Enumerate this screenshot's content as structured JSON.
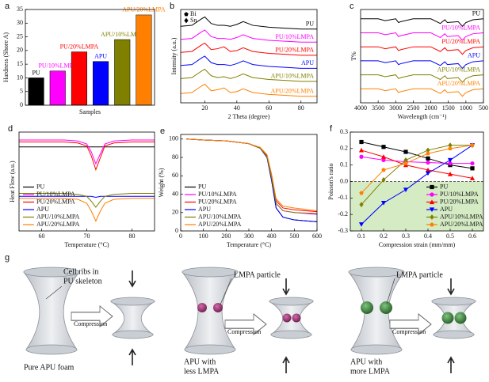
{
  "chart_data": [
    {
      "type": "bar",
      "label": "a",
      "xlabel": "Samples",
      "ylabel": "Hardness (Shore A)",
      "categories": [
        "PU",
        "PU/10%LMPA",
        "PU/20%LMPA",
        "APU",
        "APU/10%LMPA",
        "APU/20%LMPA"
      ],
      "values": [
        10,
        12.5,
        19.5,
        16,
        24,
        33
      ],
      "colors": [
        "#000000",
        "#ff00ff",
        "#ff0000",
        "#0000ff",
        "#808000",
        "#ff8000"
      ],
      "ylim": [
        0,
        35
      ],
      "yticks": [
        0,
        5,
        10,
        15,
        20,
        25,
        30,
        35
      ]
    },
    {
      "type": "line",
      "label": "b",
      "xlabel": "2 Theta (degree)",
      "ylabel": "Intensity (a.u.)",
      "annotations": [
        "Bi",
        "Sn"
      ],
      "x": [
        5,
        12,
        18,
        20,
        24,
        28,
        32,
        36,
        40,
        44,
        50,
        60,
        70,
        80,
        90
      ],
      "xlim": [
        5,
        90
      ],
      "xticks": [
        20,
        40,
        60,
        80
      ],
      "ylim": [
        0,
        100
      ],
      "series": [
        {
          "name": "PU",
          "color": "#000000",
          "values": [
            82,
            83,
            90,
            92,
            85,
            83,
            83,
            82,
            84,
            87,
            83,
            81,
            80,
            79,
            79
          ]
        },
        {
          "name": "PU/10%LMPA",
          "color": "#ff00ff",
          "values": [
            68,
            69,
            76,
            78,
            71,
            69,
            69,
            68,
            70,
            73,
            69,
            67,
            66,
            65,
            65
          ]
        },
        {
          "name": "PU/20%LMPA",
          "color": "#ff0000",
          "values": [
            54,
            55,
            62,
            64,
            57,
            58,
            60,
            55,
            56,
            59,
            55,
            53,
            52,
            51,
            51
          ]
        },
        {
          "name": "APU",
          "color": "#0000ff",
          "values": [
            40,
            41,
            48,
            50,
            43,
            41,
            41,
            40,
            42,
            45,
            41,
            39,
            38,
            37,
            37
          ]
        },
        {
          "name": "APU/10%LMPA",
          "color": "#808000",
          "values": [
            26,
            27,
            34,
            36,
            29,
            27,
            28,
            26,
            28,
            31,
            27,
            25,
            24,
            23,
            23
          ]
        },
        {
          "name": "APU/20%LMPA",
          "color": "#ff8000",
          "values": [
            10,
            11,
            18,
            20,
            13,
            14,
            16,
            11,
            12,
            15,
            11,
            9,
            8,
            7,
            7
          ]
        }
      ]
    },
    {
      "type": "line",
      "label": "c",
      "xlabel": "Wavelength (cm⁻¹)",
      "ylabel": "T%",
      "x": [
        4000,
        3500,
        3300,
        3000,
        2920,
        2850,
        2500,
        2000,
        1730,
        1600,
        1530,
        1220,
        1100,
        1000,
        800,
        500
      ],
      "xlim": [
        4000,
        500
      ],
      "xticks": [
        4000,
        3500,
        3000,
        2500,
        2000,
        1500,
        1000,
        500
      ],
      "ylim": [
        0,
        100
      ],
      "series": [
        {
          "name": "PU",
          "color": "#000000",
          "values": [
            90,
            90,
            88,
            90,
            86,
            87,
            90,
            90,
            85,
            89,
            86,
            87,
            82,
            86,
            89,
            90
          ]
        },
        {
          "name": "PU/10%LMPA",
          "color": "#ff00ff",
          "values": [
            75,
            75,
            73,
            75,
            71,
            72,
            75,
            75,
            70,
            74,
            71,
            72,
            67,
            71,
            74,
            75
          ]
        },
        {
          "name": "PU/20%LMPA",
          "color": "#ff0000",
          "values": [
            60,
            60,
            58,
            60,
            56,
            57,
            60,
            60,
            55,
            59,
            56,
            57,
            52,
            56,
            59,
            60
          ]
        },
        {
          "name": "APU",
          "color": "#0000ff",
          "values": [
            45,
            45,
            43,
            45,
            41,
            42,
            45,
            45,
            40,
            44,
            41,
            42,
            37,
            41,
            44,
            45
          ]
        },
        {
          "name": "APU/10%LMPA",
          "color": "#808000",
          "values": [
            30,
            30,
            28,
            30,
            26,
            27,
            30,
            30,
            25,
            29,
            26,
            27,
            22,
            26,
            29,
            30
          ]
        },
        {
          "name": "APU/20%LMPA",
          "color": "#ff8000",
          "values": [
            15,
            15,
            13,
            15,
            11,
            12,
            15,
            15,
            10,
            14,
            11,
            12,
            7,
            11,
            14,
            15
          ]
        }
      ]
    },
    {
      "type": "line",
      "label": "d",
      "xlabel": "Temperature (°C)",
      "ylabel": "Heat Flow (a.u.)",
      "legend": "lower left",
      "x": [
        55,
        60,
        65,
        68,
        70,
        71,
        72,
        73,
        74,
        76,
        80,
        85
      ],
      "xlim": [
        55,
        85
      ],
      "xticks": [
        60,
        70,
        80
      ],
      "ylim": [
        0,
        100
      ],
      "series": [
        {
          "name": "PU",
          "color": "#000000",
          "values": [
            85,
            85,
            85,
            85,
            85,
            85,
            85,
            85,
            85,
            85,
            85,
            85
          ]
        },
        {
          "name": "PU/10%LMPA",
          "color": "#ff00ff",
          "values": [
            92,
            92,
            92,
            91,
            88,
            80,
            68,
            78,
            88,
            91,
            92,
            92
          ]
        },
        {
          "name": "PU/20%LMPA",
          "color": "#ff0000",
          "values": [
            90,
            90,
            90,
            89,
            86,
            76,
            62,
            74,
            86,
            89,
            90,
            90
          ]
        },
        {
          "name": "APU",
          "color": "#0000ff",
          "values": [
            35,
            35,
            35,
            35,
            35,
            35,
            34,
            35,
            35,
            35,
            35,
            35
          ]
        },
        {
          "name": "APU/10%LMPA",
          "color": "#808000",
          "values": [
            38,
            38,
            38,
            37,
            35,
            30,
            24,
            30,
            35,
            37,
            38,
            38
          ]
        },
        {
          "name": "APU/20%LMPA",
          "color": "#ff8000",
          "values": [
            33,
            33,
            33,
            32,
            28,
            20,
            10,
            20,
            28,
            32,
            33,
            33
          ]
        }
      ]
    },
    {
      "type": "line",
      "label": "e",
      "xlabel": "Temperature (°C)",
      "ylabel": "Weight (%)",
      "legend": "lower left",
      "x": [
        25,
        100,
        200,
        300,
        350,
        380,
        400,
        420,
        450,
        500,
        600
      ],
      "xlim": [
        0,
        600
      ],
      "xticks": [
        0,
        100,
        200,
        300,
        400,
        500,
        600
      ],
      "ylim": [
        0,
        105
      ],
      "yticks": [
        0,
        20,
        40,
        60,
        80,
        100
      ],
      "series": [
        {
          "name": "PU",
          "color": "#000000",
          "values": [
            100,
            99,
            98,
            95,
            90,
            80,
            55,
            25,
            15,
            12,
            10
          ]
        },
        {
          "name": "PU/10%LMPA",
          "color": "#ff00ff",
          "values": [
            100,
            99,
            98,
            95,
            90,
            81,
            58,
            30,
            22,
            20,
            18
          ]
        },
        {
          "name": "PU/20%LMPA",
          "color": "#ff0000",
          "values": [
            100,
            99,
            98,
            95,
            90,
            82,
            60,
            33,
            25,
            23,
            21
          ]
        },
        {
          "name": "APU",
          "color": "#0000ff",
          "values": [
            100,
            99,
            98,
            95,
            90,
            80,
            55,
            25,
            15,
            12,
            10
          ]
        },
        {
          "name": "APU/10%LMPA",
          "color": "#808000",
          "values": [
            100,
            99,
            98,
            95,
            90,
            81,
            58,
            30,
            22,
            20,
            19
          ]
        },
        {
          "name": "APU/20%LMPA",
          "color": "#ff8000",
          "values": [
            100,
            99,
            98,
            95,
            91,
            83,
            62,
            35,
            27,
            25,
            22
          ]
        }
      ]
    },
    {
      "type": "line",
      "label": "f",
      "xlabel": "Compression strain (mm/mm)",
      "ylabel": "Poisson's ratio",
      "legend": "lower right",
      "negative_region_color": "#d4ebc4",
      "x": [
        0.1,
        0.2,
        0.3,
        0.4,
        0.5,
        0.6
      ],
      "xlim": [
        0.05,
        0.65
      ],
      "xticks": [
        0.1,
        0.2,
        0.3,
        0.4,
        0.5,
        0.6
      ],
      "ylim": [
        -0.3,
        0.3
      ],
      "yticks": [
        -0.3,
        -0.2,
        -0.1,
        {
          "value": 0,
          "label": "0.0"
        },
        0.1,
        0.2,
        0.3
      ],
      "series": [
        {
          "name": "PU",
          "color": "#000000",
          "marker": "square",
          "values": [
            0.24,
            0.21,
            0.18,
            0.14,
            0.1,
            0.08
          ]
        },
        {
          "name": "PU/10%LMPA",
          "color": "#ff00ff",
          "marker": "circle",
          "values": [
            0.15,
            0.13,
            0.12,
            0.115,
            0.11,
            0.11
          ]
        },
        {
          "name": "PU/20%LMPA",
          "color": "#ff0000",
          "marker": "triangle-up",
          "values": [
            0.19,
            0.15,
            0.1,
            0.07,
            0.045,
            0.02
          ]
        },
        {
          "name": "APU",
          "color": "#0000ff",
          "marker": "triangle-down",
          "values": [
            -0.26,
            -0.13,
            -0.05,
            0.05,
            0.13,
            0.22
          ]
        },
        {
          "name": "APU/10%LMPA",
          "color": "#808000",
          "marker": "diamond",
          "values": [
            -0.14,
            0.01,
            0.13,
            0.19,
            0.22,
            0.22
          ]
        },
        {
          "name": "APU/20%LMPA",
          "color": "#ff8000",
          "marker": "pentagon",
          "values": [
            -0.07,
            0.07,
            0.11,
            0.17,
            0.2,
            0.22
          ]
        }
      ]
    }
  ],
  "diagram": {
    "label": "g",
    "panels": [
      {
        "note": [
          "Cell ribs in",
          "PU skeleton"
        ],
        "arrow": "Compression",
        "caption": [
          "Pure APU foam"
        ]
      },
      {
        "note": [
          "LMPA particle"
        ],
        "arrow": "Compression",
        "caption": [
          "APU with",
          "less LMPA"
        ]
      },
      {
        "note": [
          "LMPA particle"
        ],
        "arrow": "Compression",
        "caption": [
          "APU with",
          "more LMPA"
        ]
      }
    ]
  }
}
